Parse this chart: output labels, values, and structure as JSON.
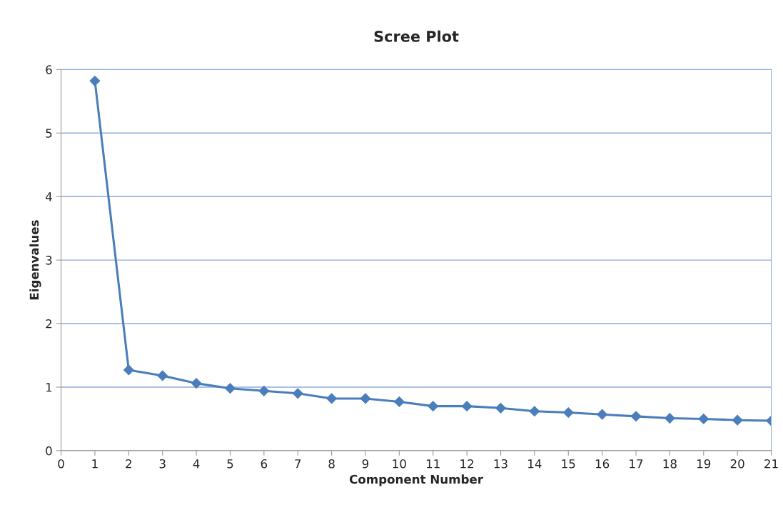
{
  "chart_data": {
    "type": "line",
    "title": "Scree Plot",
    "xlabel": "Component Number",
    "ylabel": "Eigenvalues",
    "x": [
      1,
      2,
      3,
      4,
      5,
      6,
      7,
      8,
      9,
      10,
      11,
      12,
      13,
      14,
      15,
      16,
      17,
      18,
      19,
      20,
      21
    ],
    "series": [
      {
        "color": "#4a7ebb",
        "values": [
          5.82,
          1.27,
          1.18,
          1.06,
          0.98,
          0.94,
          0.9,
          0.82,
          0.82,
          0.77,
          0.7,
          0.7,
          0.67,
          0.62,
          0.6,
          0.57,
          0.54,
          0.51,
          0.5,
          0.48,
          0.47
        ]
      }
    ],
    "xlim": [
      0,
      21
    ],
    "xticks": [
      0,
      1,
      2,
      3,
      4,
      5,
      6,
      7,
      8,
      9,
      10,
      11,
      12,
      13,
      14,
      15,
      16,
      17,
      18,
      19,
      20,
      21
    ],
    "ylim": [
      0,
      6
    ],
    "yticks": [
      0,
      1,
      2,
      3,
      4,
      5,
      6
    ],
    "grid": "y",
    "legend": false,
    "marker": "diamond",
    "line_style": "solid"
  }
}
